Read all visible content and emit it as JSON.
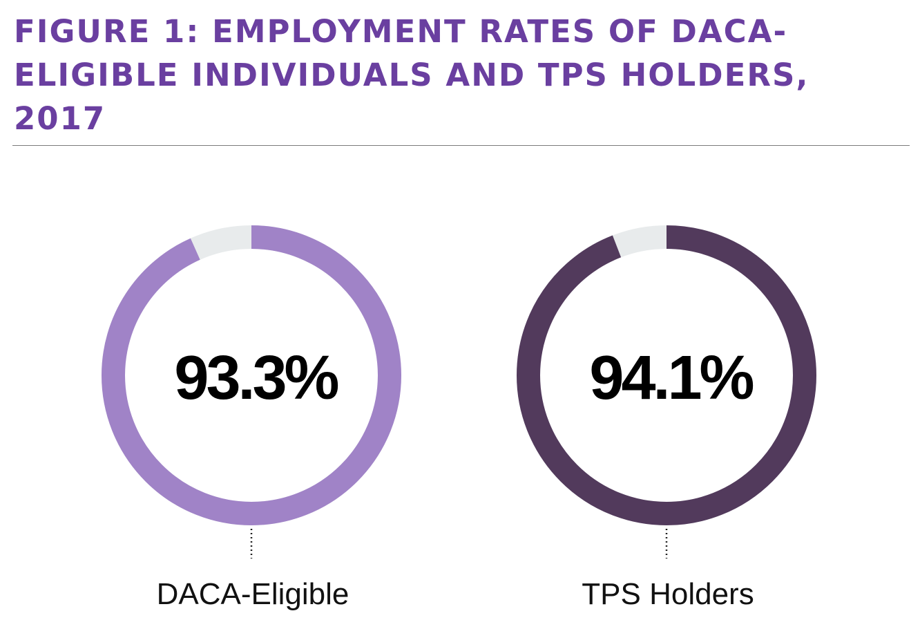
{
  "title": "FIGURE 1: EMPLOYMENT RATES OF DACA-ELIGIBLE INDIVIDUALS AND TPS HOLDERS, 2017",
  "chart_data": {
    "type": "pie",
    "charts": [
      {
        "category": "DACA-Eligible",
        "value": 93.3,
        "value_label": "93.3%",
        "color": "#a083c7",
        "remainder_color": "#e8ebec"
      },
      {
        "category": "TPS Holders",
        "value": 94.1,
        "value_label": "94.1%",
        "color": "#523a5c",
        "remainder_color": "#e8ebec"
      }
    ]
  }
}
